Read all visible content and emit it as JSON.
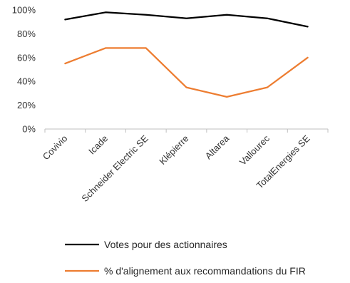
{
  "chart_data": {
    "type": "line",
    "categories": [
      "Covivio",
      "Icade",
      "Schneider Electric SE",
      "Klépierre",
      "Altarea",
      "Vallourec",
      "TotalEnergies SE"
    ],
    "series": [
      {
        "name": "Votes pour des actionnaires",
        "color": "#000000",
        "values": [
          92,
          98,
          96,
          93,
          96,
          93,
          86
        ]
      },
      {
        "name": "% d'alignement aux recommandations du FIR",
        "color": "#ED7D31",
        "values": [
          55,
          68,
          68,
          35,
          27,
          35,
          60
        ]
      }
    ],
    "yticks": [
      "0%",
      "20%",
      "40%",
      "60%",
      "80%",
      "100%"
    ],
    "ylim": [
      0,
      100
    ],
    "grid": false,
    "legend_position": "bottom",
    "title": "",
    "xlabel": "",
    "ylabel": ""
  }
}
